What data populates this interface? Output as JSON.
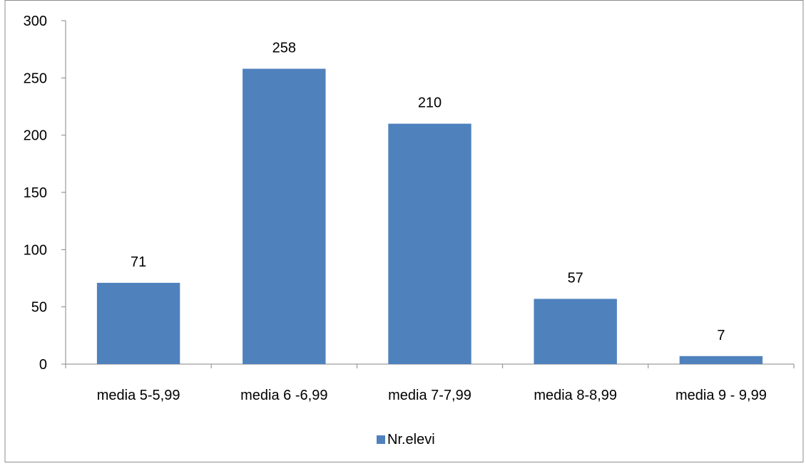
{
  "chart_data": {
    "type": "bar",
    "title": "",
    "xlabel": "",
    "ylabel": "",
    "categories": [
      "media 5-5,99",
      "media 6 -6,99",
      "media 7-7,99",
      "media 8-8,99",
      "media 9 - 9,99"
    ],
    "series": [
      {
        "name": "Nr.elevi",
        "values": [
          71,
          258,
          210,
          57,
          7
        ],
        "color": "#4F81BD"
      }
    ],
    "ylim": [
      0,
      300
    ],
    "yticks": [
      0,
      50,
      100,
      150,
      200,
      250,
      300
    ],
    "grid": false,
    "legend_position": "bottom",
    "data_labels": true
  }
}
